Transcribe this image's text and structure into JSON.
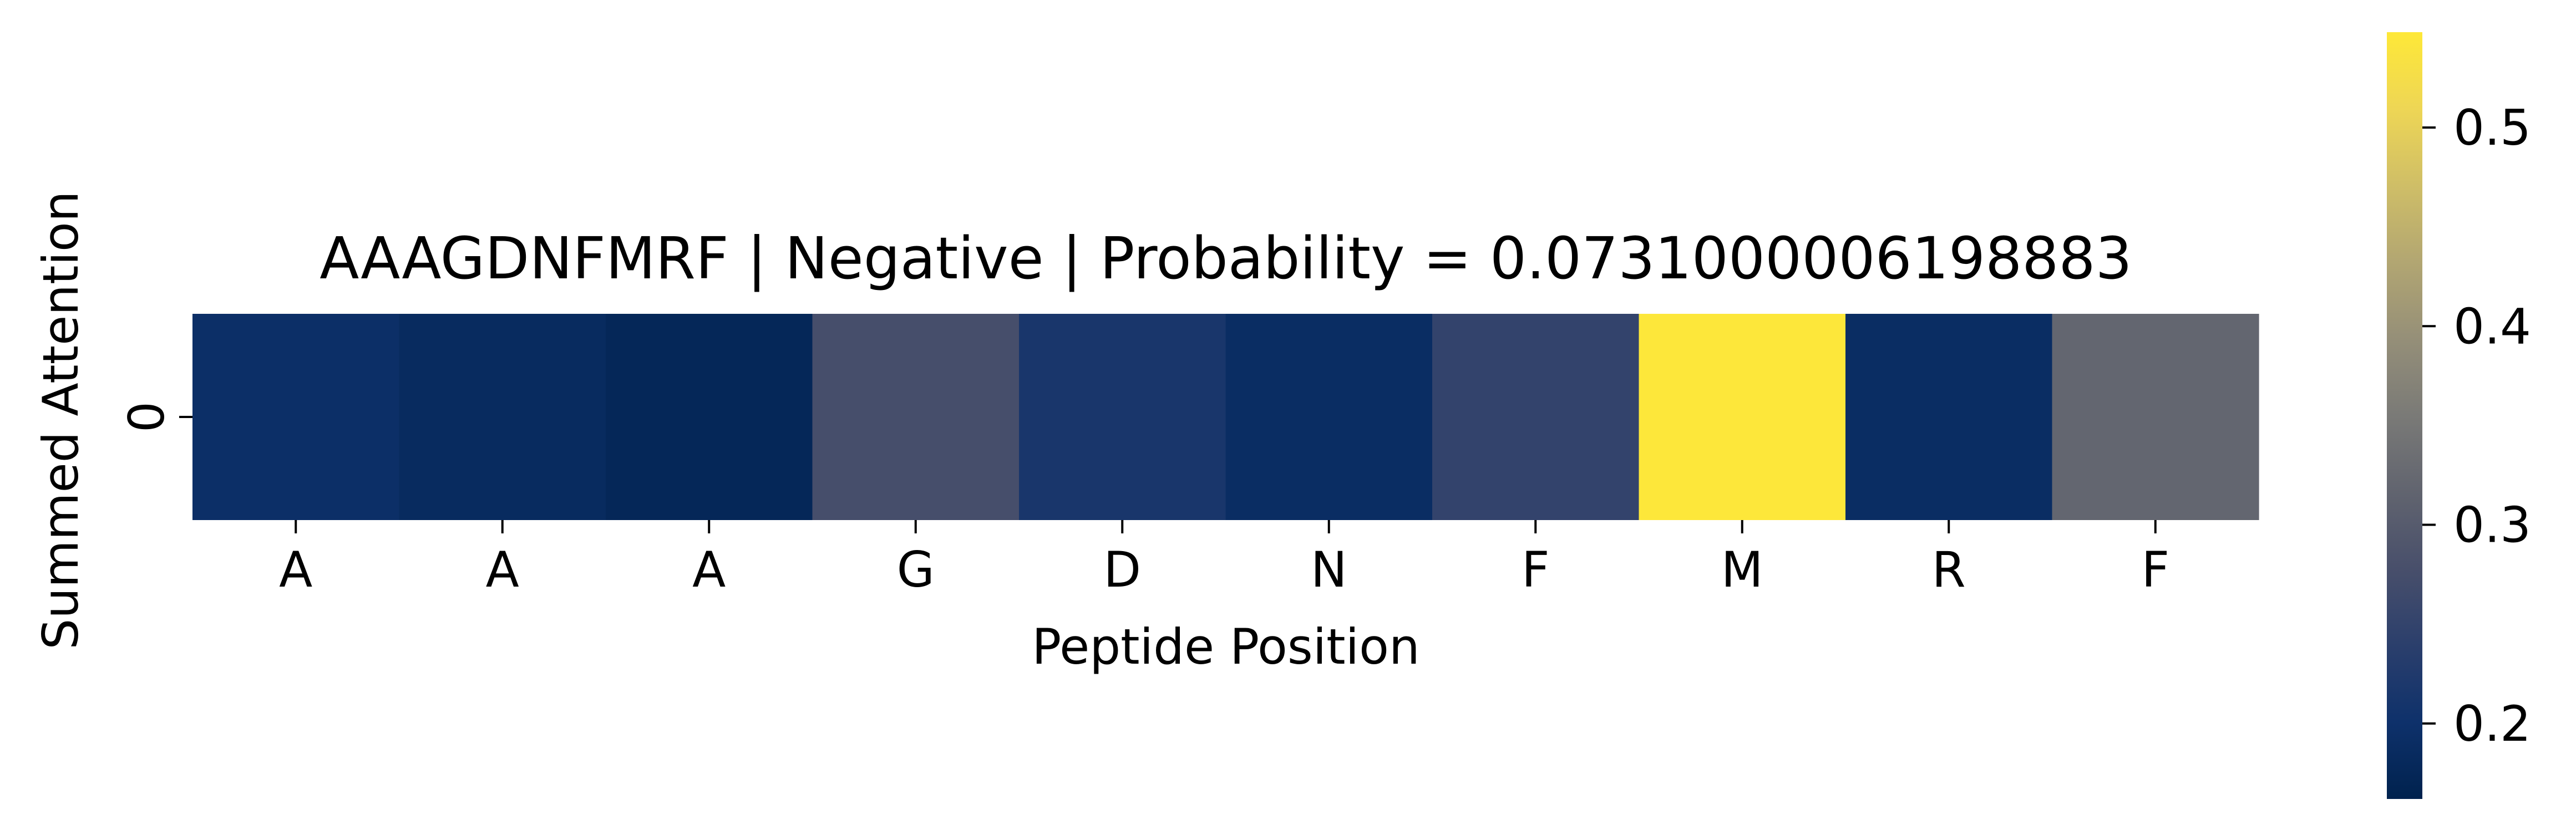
{
  "chart_data": {
    "type": "heatmap",
    "title": "AAAGDNFMRF | Negative | Probability = 0.0731000006198883",
    "xlabel": "Peptide Position",
    "ylabel": "Summed Attention",
    "x_categories": [
      "A",
      "A",
      "A",
      "G",
      "D",
      "N",
      "F",
      "M",
      "R",
      "F"
    ],
    "y_categories": [
      "0"
    ],
    "values": [
      [
        0.195,
        0.185,
        0.175,
        0.275,
        0.215,
        0.19,
        0.25,
        0.545,
        0.19,
        0.32
      ]
    ],
    "colormap": "cividis",
    "colorbar": {
      "range": [
        0.162,
        0.548
      ],
      "ticks": [
        0.2,
        0.3,
        0.4,
        0.5
      ],
      "tick_labels": [
        "0.2",
        "0.3",
        "0.4",
        "0.5"
      ],
      "placement": "right"
    },
    "grid": false,
    "legend": "none"
  }
}
